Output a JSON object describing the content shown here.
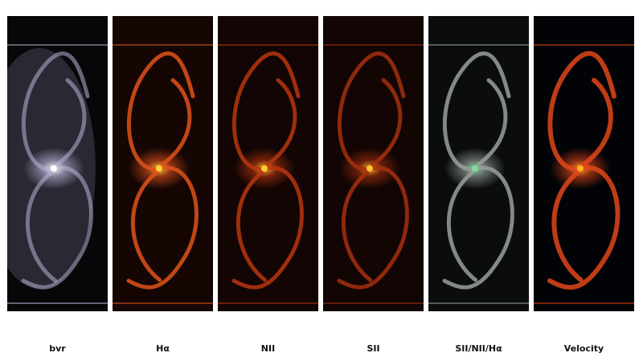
{
  "panels": [
    {
      "label": "bvr",
      "arm": "#b9b3d6",
      "core": "#ffffff",
      "bg": "#070608"
    },
    {
      "label": "Hα",
      "arm": "#e0521a",
      "core": "#ffd23a",
      "bg": "#150604"
    },
    {
      "label": "NII",
      "arm": "#b8360f",
      "core": "#ffcc30",
      "bg": "#120503"
    },
    {
      "label": "SII",
      "arm": "#a6300d",
      "core": "#ffc22a",
      "bg": "#120504"
    },
    {
      "label": "SII/NII/Hα",
      "arm": "#9a9f9c",
      "core": "#7fdc9a",
      "bg": "#0a0d0c"
    },
    {
      "label": "Velocity",
      "arm": "#e0461a",
      "core": "#ffb020",
      "bg": "#020306"
    }
  ]
}
